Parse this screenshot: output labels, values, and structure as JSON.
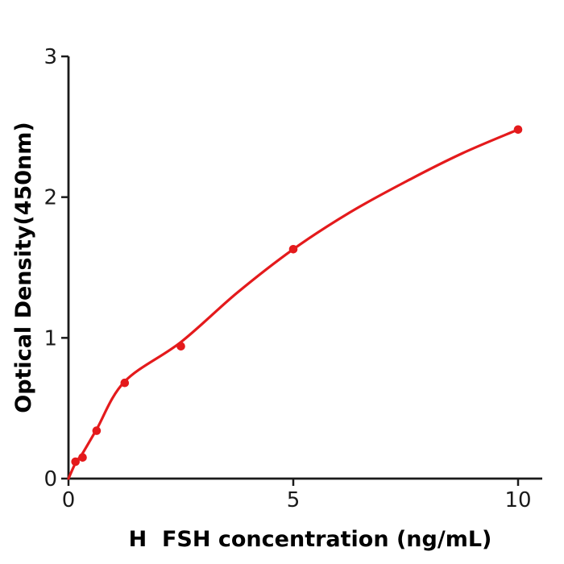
{
  "figure": {
    "background": "#ffffff"
  },
  "chart_data": {
    "type": "scatter",
    "title": "",
    "xlabel": "H  FSH concentration (ng/mL)",
    "ylabel": "Optical Density(450nm)",
    "xlim": [
      0,
      10.54
    ],
    "ylim": [
      0,
      3
    ],
    "xticks": [
      0,
      5,
      10
    ],
    "yticks": [
      0,
      1,
      2,
      3
    ],
    "grid": false,
    "legend_position": "none",
    "axis_color": "#1a1a1a",
    "tick_label_color": "#1a1a1a",
    "accent_color": "#e41a1c",
    "series": [
      {
        "name": "standard-data-points",
        "type": "scatter",
        "color": "#e41a1c",
        "marker": "circle",
        "x": [
          0.156,
          0.313,
          0.625,
          1.25,
          2.5,
          5,
          10
        ],
        "y": [
          0.12,
          0.15,
          0.34,
          0.68,
          0.94,
          1.63,
          2.48
        ]
      },
      {
        "name": "fitted-curve",
        "type": "line",
        "color": "#e41a1c",
        "x": [
          0,
          0.156,
          0.313,
          0.625,
          1.25,
          2.5,
          3.75,
          5,
          6.25,
          7.5,
          8.75,
          10
        ],
        "y": [
          0,
          0.11,
          0.18,
          0.35,
          0.69,
          0.97,
          1.32,
          1.63,
          1.89,
          2.11,
          2.31,
          2.48
        ]
      }
    ]
  }
}
